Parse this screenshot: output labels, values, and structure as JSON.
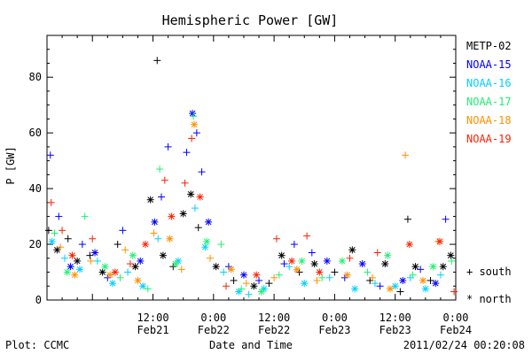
{
  "chart_data": {
    "type": "scatter",
    "title": "Hemispheric Power [GW]",
    "ylabel": "P [GW]",
    "xlabel": "Date and Time",
    "ylim": [
      0,
      95
    ],
    "xlim": [
      "2011-02-20 15:00",
      "2011-02-24 00:00"
    ],
    "yticks": [
      0,
      20,
      40,
      60,
      80
    ],
    "xticks": [
      {
        "time": "2011-02-21 12:00",
        "label1": "12:00",
        "label2": "Feb21"
      },
      {
        "time": "2011-02-22 00:00",
        "label1": "0:00",
        "label2": "Feb22"
      },
      {
        "time": "2011-02-22 12:00",
        "label1": "12:00",
        "label2": "Feb22"
      },
      {
        "time": "2011-02-23 00:00",
        "label1": "0:00",
        "label2": "Feb23"
      },
      {
        "time": "2011-02-23 12:00",
        "label1": "12:00",
        "label2": "Feb23"
      },
      {
        "time": "2011-02-24 00:00",
        "label1": "0:00",
        "label2": "Feb24"
      }
    ],
    "hemisphere_markers": {
      "south": "+",
      "north": "*"
    },
    "hemisphere_legend": {
      "south": "+ south",
      "north": "* north"
    },
    "series": [
      {
        "name": "METP-02",
        "color": "#000000",
        "points": [
          [
            "2011-02-20 15:20",
            25,
            "S"
          ],
          [
            "2011-02-20 17:00",
            18,
            "N"
          ],
          [
            "2011-02-20 19:10",
            22,
            "S"
          ],
          [
            "2011-02-20 21:00",
            14,
            "N"
          ],
          [
            "2011-02-20 23:30",
            16,
            "S"
          ],
          [
            "2011-02-21 02:00",
            10,
            "N"
          ],
          [
            "2011-02-21 05:00",
            20,
            "S"
          ],
          [
            "2011-02-21 08:30",
            12,
            "N"
          ],
          [
            "2011-02-21 11:30",
            36,
            "N"
          ],
          [
            "2011-02-21 12:50",
            86,
            "S"
          ],
          [
            "2011-02-21 14:00",
            16,
            "N"
          ],
          [
            "2011-02-21 16:00",
            12,
            "S"
          ],
          [
            "2011-02-21 18:00",
            31,
            "N"
          ],
          [
            "2011-02-21 19:30",
            38,
            "N"
          ],
          [
            "2011-02-21 21:00",
            26,
            "S"
          ],
          [
            "2011-02-22 00:30",
            12,
            "N"
          ],
          [
            "2011-02-22 04:00",
            7,
            "S"
          ],
          [
            "2011-02-22 08:00",
            5,
            "N"
          ],
          [
            "2011-02-22 11:00",
            6,
            "S"
          ],
          [
            "2011-02-22 13:30",
            16,
            "N"
          ],
          [
            "2011-02-22 17:00",
            10,
            "S"
          ],
          [
            "2011-02-22 20:00",
            13,
            "N"
          ],
          [
            "2011-02-23 00:00",
            10,
            "S"
          ],
          [
            "2011-02-23 03:30",
            18,
            "N"
          ],
          [
            "2011-02-23 07:00",
            7,
            "S"
          ],
          [
            "2011-02-23 10:00",
            13,
            "N"
          ],
          [
            "2011-02-23 13:00",
            3,
            "S"
          ],
          [
            "2011-02-23 14:30",
            29,
            "S"
          ],
          [
            "2011-02-23 16:00",
            12,
            "N"
          ],
          [
            "2011-02-23 19:00",
            7,
            "S"
          ],
          [
            "2011-02-23 21:30",
            12,
            "N"
          ],
          [
            "2011-02-23 23:00",
            16,
            "N"
          ]
        ]
      },
      {
        "name": "NOAA-15",
        "color": "#0000ff",
        "points": [
          [
            "2011-02-20 15:40",
            52,
            "S"
          ],
          [
            "2011-02-20 17:20",
            30,
            "S"
          ],
          [
            "2011-02-20 19:40",
            12,
            "N"
          ],
          [
            "2011-02-20 22:00",
            20,
            "S"
          ],
          [
            "2011-02-21 00:30",
            17,
            "N"
          ],
          [
            "2011-02-21 03:00",
            8,
            "S"
          ],
          [
            "2011-02-21 06:00",
            25,
            "S"
          ],
          [
            "2011-02-21 09:30",
            14,
            "N"
          ],
          [
            "2011-02-21 12:20",
            28,
            "N"
          ],
          [
            "2011-02-21 13:40",
            37,
            "S"
          ],
          [
            "2011-02-21 15:00",
            55,
            "S"
          ],
          [
            "2011-02-21 18:40",
            53,
            "S"
          ],
          [
            "2011-02-21 19:50",
            67,
            "N"
          ],
          [
            "2011-02-21 20:40",
            60,
            "S"
          ],
          [
            "2011-02-21 21:40",
            46,
            "S"
          ],
          [
            "2011-02-21 23:00",
            28,
            "N"
          ],
          [
            "2011-02-22 03:00",
            12,
            "S"
          ],
          [
            "2011-02-22 06:00",
            9,
            "N"
          ],
          [
            "2011-02-22 09:00",
            7,
            "S"
          ],
          [
            "2011-02-22 14:00",
            13,
            "S"
          ],
          [
            "2011-02-22 16:00",
            20,
            "S"
          ],
          [
            "2011-02-22 19:30",
            17,
            "S"
          ],
          [
            "2011-02-22 22:30",
            14,
            "N"
          ],
          [
            "2011-02-23 02:00",
            8,
            "S"
          ],
          [
            "2011-02-23 05:30",
            13,
            "N"
          ],
          [
            "2011-02-23 09:00",
            5,
            "S"
          ],
          [
            "2011-02-23 13:30",
            7,
            "N"
          ],
          [
            "2011-02-23 17:00",
            11,
            "S"
          ],
          [
            "2011-02-23 20:00",
            6,
            "N"
          ],
          [
            "2011-02-23 22:00",
            29,
            "S"
          ]
        ]
      },
      {
        "name": "NOAA-16",
        "color": "#00d0ff",
        "points": [
          [
            "2011-02-20 16:00",
            21,
            "N"
          ],
          [
            "2011-02-20 18:30",
            15,
            "S"
          ],
          [
            "2011-02-20 21:30",
            11,
            "N"
          ],
          [
            "2011-02-21 01:00",
            14,
            "S"
          ],
          [
            "2011-02-21 04:00",
            6,
            "N"
          ],
          [
            "2011-02-21 07:00",
            10,
            "S"
          ],
          [
            "2011-02-21 10:00",
            5,
            "N"
          ],
          [
            "2011-02-21 13:00",
            22,
            "S"
          ],
          [
            "2011-02-21 17:00",
            14,
            "N"
          ],
          [
            "2011-02-21 20:20",
            33,
            "S"
          ],
          [
            "2011-02-21 22:20",
            19,
            "N"
          ],
          [
            "2011-02-22 02:00",
            10,
            "S"
          ],
          [
            "2011-02-22 05:00",
            3,
            "N"
          ],
          [
            "2011-02-22 07:00",
            2,
            "S"
          ],
          [
            "2011-02-22 10:00",
            4,
            "N"
          ],
          [
            "2011-02-22 15:00",
            12,
            "S"
          ],
          [
            "2011-02-22 18:00",
            6,
            "N"
          ],
          [
            "2011-02-22 23:00",
            8,
            "S"
          ],
          [
            "2011-02-23 04:00",
            4,
            "N"
          ],
          [
            "2011-02-23 08:00",
            6,
            "S"
          ],
          [
            "2011-02-23 12:00",
            5,
            "N"
          ],
          [
            "2011-02-23 15:00",
            8,
            "S"
          ],
          [
            "2011-02-23 18:00",
            4,
            "N"
          ],
          [
            "2011-02-23 21:00",
            9,
            "S"
          ]
        ]
      },
      {
        "name": "NOAA-17",
        "color": "#20f070",
        "points": [
          [
            "2011-02-20 16:30",
            24,
            "S"
          ],
          [
            "2011-02-20 19:00",
            10,
            "N"
          ],
          [
            "2011-02-20 22:30",
            30,
            "S"
          ],
          [
            "2011-02-21 02:30",
            12,
            "N"
          ],
          [
            "2011-02-21 05:30",
            8,
            "S"
          ],
          [
            "2011-02-21 08:00",
            16,
            "N"
          ],
          [
            "2011-02-21 11:00",
            4,
            "S"
          ],
          [
            "2011-02-21 13:20",
            47,
            "S"
          ],
          [
            "2011-02-21 16:30",
            13,
            "N"
          ],
          [
            "2011-02-21 20:00",
            66,
            "S"
          ],
          [
            "2011-02-21 22:40",
            21,
            "N"
          ],
          [
            "2011-02-22 01:30",
            20,
            "S"
          ],
          [
            "2011-02-22 05:30",
            4,
            "S"
          ],
          [
            "2011-02-22 09:30",
            3,
            "N"
          ],
          [
            "2011-02-22 13:00",
            9,
            "S"
          ],
          [
            "2011-02-22 17:30",
            14,
            "N"
          ],
          [
            "2011-02-22 21:30",
            8,
            "S"
          ],
          [
            "2011-02-23 01:30",
            14,
            "N"
          ],
          [
            "2011-02-23 06:30",
            10,
            "S"
          ],
          [
            "2011-02-23 10:30",
            16,
            "N"
          ],
          [
            "2011-02-23 15:30",
            9,
            "S"
          ],
          [
            "2011-02-23 19:30",
            12,
            "N"
          ],
          [
            "2011-02-23 23:10",
            14,
            "S"
          ]
        ]
      },
      {
        "name": "NOAA-18",
        "color": "#ff9000",
        "points": [
          [
            "2011-02-20 17:40",
            19,
            "S"
          ],
          [
            "2011-02-20 20:30",
            9,
            "N"
          ],
          [
            "2011-02-20 23:40",
            14,
            "S"
          ],
          [
            "2011-02-21 03:30",
            9,
            "N"
          ],
          [
            "2011-02-21 06:30",
            18,
            "S"
          ],
          [
            "2011-02-21 09:00",
            7,
            "N"
          ],
          [
            "2011-02-21 12:10",
            24,
            "S"
          ],
          [
            "2011-02-21 15:20",
            22,
            "N"
          ],
          [
            "2011-02-21 17:40",
            11,
            "S"
          ],
          [
            "2011-02-21 20:10",
            63,
            "N"
          ],
          [
            "2011-02-21 23:20",
            15,
            "S"
          ],
          [
            "2011-02-22 03:30",
            11,
            "N"
          ],
          [
            "2011-02-22 06:30",
            6,
            "S"
          ],
          [
            "2011-02-22 12:00",
            8,
            "S"
          ],
          [
            "2011-02-22 16:30",
            11,
            "N"
          ],
          [
            "2011-02-22 20:30",
            7,
            "S"
          ],
          [
            "2011-02-23 02:30",
            9,
            "N"
          ],
          [
            "2011-02-23 07:30",
            8,
            "S"
          ],
          [
            "2011-02-23 11:00",
            4,
            "N"
          ],
          [
            "2011-02-23 14:00",
            52,
            "S"
          ],
          [
            "2011-02-23 17:30",
            7,
            "N"
          ],
          [
            "2011-02-23 20:30",
            21,
            "S"
          ]
        ]
      },
      {
        "name": "NOAA-19",
        "color": "#ff2000",
        "points": [
          [
            "2011-02-20 15:50",
            35,
            "S"
          ],
          [
            "2011-02-20 18:00",
            25,
            "S"
          ],
          [
            "2011-02-20 20:00",
            16,
            "N"
          ],
          [
            "2011-02-21 00:00",
            22,
            "S"
          ],
          [
            "2011-02-21 04:30",
            10,
            "N"
          ],
          [
            "2011-02-21 07:30",
            13,
            "S"
          ],
          [
            "2011-02-21 10:30",
            20,
            "N"
          ],
          [
            "2011-02-21 14:20",
            43,
            "S"
          ],
          [
            "2011-02-21 15:40",
            30,
            "N"
          ],
          [
            "2011-02-21 18:20",
            42,
            "S"
          ],
          [
            "2011-02-21 19:40",
            58,
            "S"
          ],
          [
            "2011-02-21 21:20",
            37,
            "N"
          ],
          [
            "2011-02-22 02:30",
            5,
            "S"
          ],
          [
            "2011-02-22 08:30",
            9,
            "N"
          ],
          [
            "2011-02-22 12:30",
            22,
            "S"
          ],
          [
            "2011-02-22 15:30",
            14,
            "N"
          ],
          [
            "2011-02-22 18:30",
            23,
            "S"
          ],
          [
            "2011-02-22 21:00",
            10,
            "N"
          ],
          [
            "2011-02-23 03:00",
            15,
            "S"
          ],
          [
            "2011-02-23 08:30",
            17,
            "S"
          ],
          [
            "2011-02-23 14:50",
            20,
            "N"
          ],
          [
            "2011-02-23 20:50",
            21,
            "N"
          ],
          [
            "2011-02-23 23:40",
            3,
            "S"
          ]
        ]
      }
    ]
  },
  "footer": {
    "plot_credit": "Plot: CCMC",
    "timestamp": "2011/02/24 00:20:08"
  }
}
